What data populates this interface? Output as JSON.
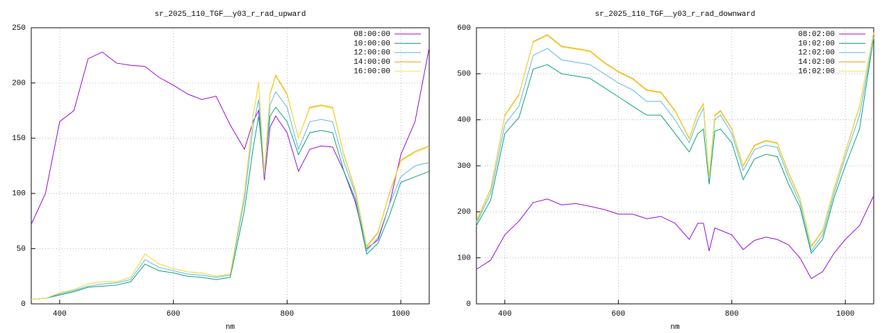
{
  "chart_data": [
    {
      "type": "line",
      "title": "sr_2025_110_TGF__y03_r_rad_upward",
      "x_label": "nm",
      "x": [
        350,
        375,
        400,
        425,
        450,
        475,
        500,
        525,
        550,
        575,
        600,
        625,
        650,
        675,
        700,
        725,
        740,
        750,
        760,
        770,
        780,
        800,
        820,
        840,
        860,
        880,
        900,
        920,
        940,
        960,
        980,
        1000,
        1025,
        1050
      ],
      "xlim": [
        350,
        1050
      ],
      "xticks": [
        400,
        600,
        800,
        1000
      ],
      "ylim": [
        0,
        250
      ],
      "yticks": [
        0,
        50,
        100,
        150,
        200,
        250
      ],
      "grid": true,
      "legend": "top-right",
      "series": [
        {
          "name": "08:00:00",
          "color": "#9400d3",
          "values": [
            72,
            100,
            165,
            175,
            222,
            228,
            218,
            216,
            215,
            205,
            198,
            190,
            185,
            188,
            162,
            140,
            165,
            175,
            112,
            160,
            170,
            155,
            120,
            140,
            143,
            142,
            120,
            92,
            50,
            58,
            90,
            135,
            165,
            232
          ]
        },
        {
          "name": "10:00:00",
          "color": "#009e73",
          "values": [
            4,
            5,
            8,
            11,
            15,
            16,
            17,
            20,
            36,
            30,
            28,
            25,
            24,
            22,
            24,
            85,
            140,
            170,
            120,
            170,
            178,
            165,
            135,
            155,
            157,
            155,
            120,
            95,
            45,
            55,
            80,
            110,
            115,
            120
          ]
        },
        {
          "name": "12:00:00",
          "color": "#56b4e9",
          "values": [
            4,
            5,
            9,
            12,
            16,
            18,
            19,
            22,
            40,
            33,
            30,
            27,
            26,
            24,
            26,
            95,
            160,
            185,
            115,
            180,
            192,
            178,
            140,
            165,
            167,
            165,
            128,
            100,
            48,
            60,
            90,
            115,
            125,
            128
          ]
        },
        {
          "name": "14:00:00",
          "color": "#e69f00",
          "values": [
            4,
            5,
            10,
            13,
            18,
            20,
            20,
            24,
            45,
            36,
            32,
            29,
            28,
            25,
            27,
            100,
            170,
            200,
            118,
            190,
            207,
            190,
            150,
            178,
            180,
            178,
            135,
            103,
            52,
            65,
            100,
            130,
            138,
            143
          ]
        },
        {
          "name": "16:00:00",
          "color": "#f0e442",
          "values": [
            4,
            5,
            10,
            13,
            18,
            20,
            20,
            24,
            45,
            36,
            32,
            29,
            28,
            25,
            27,
            100,
            170,
            199,
            118,
            189,
            206,
            189,
            150,
            177,
            179,
            177,
            134,
            102,
            51,
            64,
            99,
            129,
            137,
            142
          ]
        }
      ]
    },
    {
      "type": "line",
      "title": "sr_2025_110_TGF__y03_r_rad_downward",
      "x_label": "nm",
      "x": [
        350,
        375,
        400,
        425,
        450,
        475,
        500,
        525,
        550,
        575,
        600,
        625,
        650,
        675,
        700,
        725,
        740,
        750,
        760,
        770,
        780,
        800,
        820,
        840,
        860,
        880,
        900,
        920,
        940,
        960,
        980,
        1000,
        1025,
        1050
      ],
      "xlim": [
        350,
        1050
      ],
      "xticks": [
        400,
        600,
        800,
        1000
      ],
      "ylim": [
        0,
        600
      ],
      "yticks": [
        0,
        100,
        200,
        300,
        400,
        500,
        600
      ],
      "grid": true,
      "legend": "top-right",
      "series": [
        {
          "name": "08:02:00",
          "color": "#9400d3",
          "values": [
            75,
            95,
            150,
            180,
            220,
            228,
            215,
            218,
            212,
            205,
            195,
            195,
            185,
            190,
            175,
            140,
            175,
            175,
            115,
            165,
            160,
            150,
            118,
            138,
            145,
            140,
            128,
            100,
            55,
            70,
            110,
            140,
            170,
            235
          ]
        },
        {
          "name": "10:02:00",
          "color": "#009e73",
          "values": [
            170,
            225,
            370,
            405,
            510,
            520,
            500,
            495,
            490,
            470,
            450,
            430,
            410,
            410,
            370,
            330,
            370,
            380,
            260,
            375,
            380,
            350,
            270,
            315,
            325,
            320,
            260,
            210,
            110,
            140,
            230,
            300,
            380,
            580
          ]
        },
        {
          "name": "12:02:00",
          "color": "#56b4e9",
          "values": [
            175,
            240,
            390,
            430,
            540,
            555,
            530,
            525,
            520,
            500,
            480,
            465,
            440,
            440,
            400,
            350,
            400,
            425,
            270,
            400,
            410,
            370,
            290,
            335,
            345,
            340,
            275,
            220,
            115,
            150,
            240,
            320,
            410,
            580
          ]
        },
        {
          "name": "14:02:00",
          "color": "#e69f00",
          "values": [
            180,
            250,
            410,
            455,
            570,
            585,
            560,
            555,
            550,
            525,
            505,
            490,
            465,
            460,
            420,
            360,
            415,
            435,
            275,
            410,
            420,
            380,
            300,
            345,
            355,
            350,
            285,
            230,
            125,
            160,
            250,
            330,
            430,
            590
          ]
        },
        {
          "name": "16:02:00",
          "color": "#f0e442",
          "values": [
            178,
            248,
            408,
            453,
            568,
            583,
            558,
            553,
            548,
            523,
            503,
            488,
            463,
            458,
            418,
            358,
            413,
            433,
            273,
            408,
            418,
            378,
            298,
            343,
            353,
            348,
            283,
            228,
            123,
            158,
            248,
            328,
            428,
            588
          ]
        }
      ]
    }
  ]
}
